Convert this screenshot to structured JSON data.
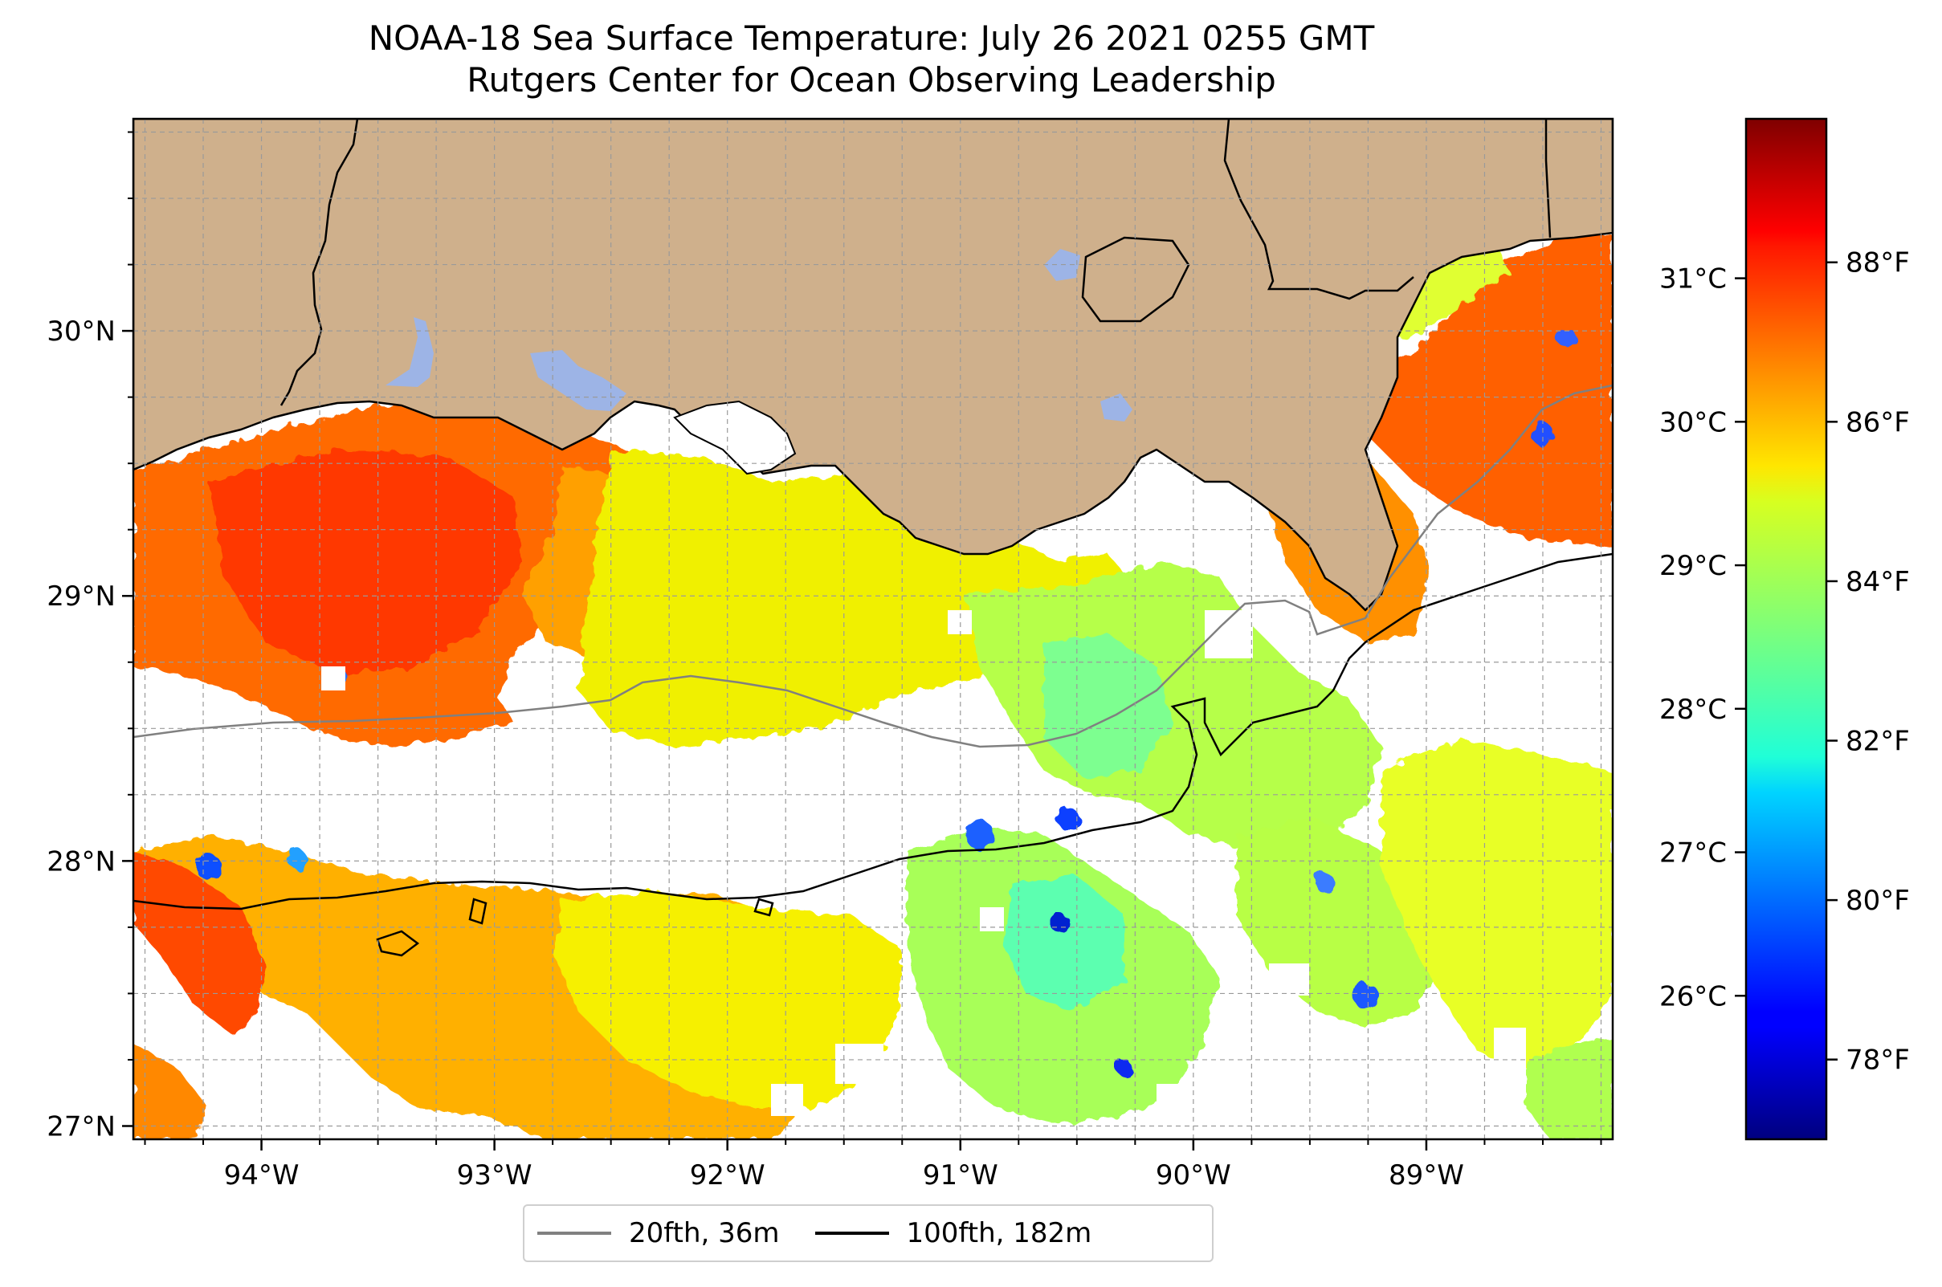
{
  "title": {
    "line1": "NOAA-18 Sea Surface Temperature: July 26 2021 0255 GMT",
    "line2": "Rutgers Center for Ocean Observing Leadership"
  },
  "map": {
    "lon_range": [
      -94.55,
      -88.2
    ],
    "lat_range": [
      26.95,
      30.8
    ],
    "lat_ticks": [
      {
        "value": 27,
        "label": "27°N"
      },
      {
        "value": 28,
        "label": "28°N"
      },
      {
        "value": 29,
        "label": "29°N"
      },
      {
        "value": 30,
        "label": "30°N"
      }
    ],
    "lon_ticks": [
      {
        "value": -94,
        "label": "94°W"
      },
      {
        "value": -93,
        "label": "93°W"
      },
      {
        "value": -92,
        "label": "92°W"
      },
      {
        "value": -91,
        "label": "91°W"
      },
      {
        "value": -90,
        "label": "90°W"
      },
      {
        "value": -89,
        "label": "89°W"
      }
    ],
    "grid": true,
    "colors": {
      "land": "#cfb08c",
      "lakes": "#9db4e6",
      "no_data": "#ffffff",
      "isobath_20fth": "#808080",
      "isobath_100fth": "#000000"
    }
  },
  "colorbar": {
    "colormap": "jet",
    "range_f": [
      77.0,
      89.8
    ],
    "celsius_ticks": [
      {
        "value": 26,
        "label": "26°C"
      },
      {
        "value": 27,
        "label": "27°C"
      },
      {
        "value": 28,
        "label": "28°C"
      },
      {
        "value": 29,
        "label": "29°C"
      },
      {
        "value": 30,
        "label": "30°C"
      },
      {
        "value": 31,
        "label": "31°C"
      }
    ],
    "fahrenheit_ticks": [
      {
        "value": 78,
        "label": "78°F"
      },
      {
        "value": 80,
        "label": "80°F"
      },
      {
        "value": 82,
        "label": "82°F"
      },
      {
        "value": 84,
        "label": "84°F"
      },
      {
        "value": 86,
        "label": "86°F"
      },
      {
        "value": 88,
        "label": "88°F"
      }
    ]
  },
  "legend": {
    "placement": "bottom-center",
    "items": [
      {
        "label": "20fth, 36m",
        "color": "#808080"
      },
      {
        "label": "100fth, 182m",
        "color": "#000000"
      }
    ]
  }
}
